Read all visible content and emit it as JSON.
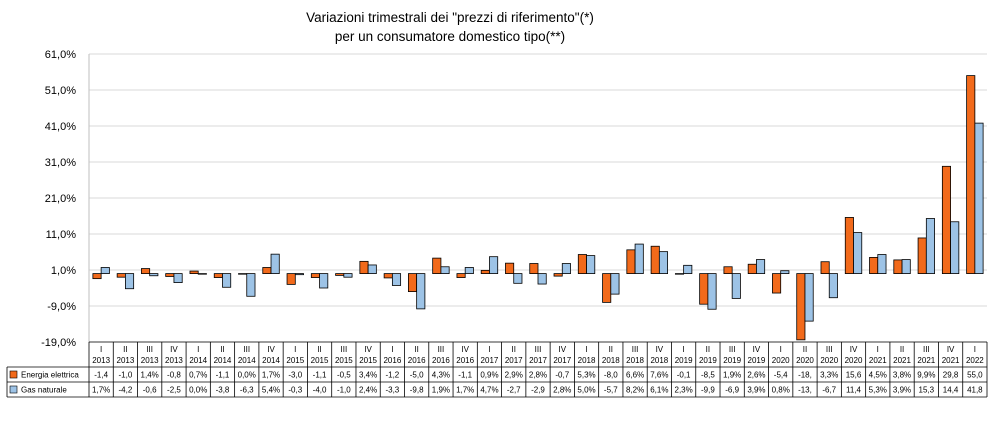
{
  "chart_data": {
    "type": "bar",
    "title": "Variazioni trimestrali dei \"prezzi di riferimento\"(*)",
    "subtitle": "per un consumatore domestico tipo(**)",
    "y_ticks": [
      "61,0%",
      "51,0%",
      "41,0%",
      "31,0%",
      "21,0%",
      "11,0%",
      "1,0%",
      "-9,0%",
      "-19,0%"
    ],
    "y_tick_values": [
      61,
      51,
      41,
      31,
      21,
      11,
      1,
      -9,
      -19
    ],
    "ylim": [
      -19,
      61
    ],
    "grid": true,
    "legend_position": "table-left",
    "quarters": [
      "I",
      "II",
      "III",
      "IV",
      "I",
      "II",
      "III",
      "IV",
      "I",
      "II",
      "III",
      "IV",
      "I",
      "II",
      "III",
      "IV",
      "I",
      "II",
      "III",
      "IV",
      "I",
      "II",
      "III",
      "IV",
      "I",
      "II",
      "III",
      "IV",
      "I",
      "II",
      "III",
      "IV",
      "I",
      "II",
      "III",
      "IV",
      "I"
    ],
    "years": [
      "2013",
      "2013",
      "2013",
      "2013",
      "2014",
      "2014",
      "2014",
      "2014",
      "2015",
      "2015",
      "2015",
      "2015",
      "2016",
      "2016",
      "2016",
      "2016",
      "2017",
      "2017",
      "2017",
      "2017",
      "2018",
      "2018",
      "2018",
      "2018",
      "2019",
      "2019",
      "2019",
      "2019",
      "2020",
      "2020",
      "2020",
      "2020",
      "2021",
      "2021",
      "2021",
      "2021",
      "2022"
    ],
    "series": [
      {
        "name": "Energia elettrica",
        "color": "#F26A1B",
        "values": [
          -1.4,
          -1.0,
          1.4,
          -0.8,
          0.7,
          -1.1,
          0.0,
          1.7,
          -3.0,
          -1.1,
          -0.5,
          3.4,
          -1.2,
          -5.0,
          4.3,
          -1.1,
          0.9,
          2.9,
          2.8,
          -0.7,
          5.3,
          -8.0,
          6.6,
          7.6,
          -0.1,
          -8.5,
          1.9,
          2.6,
          -5.4,
          -18.4,
          3.3,
          15.6,
          4.5,
          3.8,
          9.9,
          29.8,
          55.0
        ],
        "labels": [
          "-1,4",
          "-1,0",
          "1,4%",
          "-0,8",
          "0,7%",
          "-1,1",
          "0,0%",
          "1,7%",
          "-3,0",
          "-1,1",
          "-0,5",
          "3,4%",
          "-1,2",
          "-5,0",
          "4,3%",
          "-1,1",
          "0,9%",
          "2,9%",
          "2,8%",
          "-0,7",
          "5,3%",
          "-8,0",
          "6,6%",
          "7,6%",
          "-0,1",
          "-8,5",
          "1,9%",
          "2,6%",
          "-5,4",
          "-18,",
          "3,3%",
          "15,6",
          "4,5%",
          "3,8%",
          "9,9%",
          "29,8",
          "55,0"
        ]
      },
      {
        "name": "Gas naturale",
        "color": "#9DC3E6",
        "values": [
          1.7,
          -4.2,
          -0.6,
          -2.5,
          0.0,
          -3.8,
          -6.3,
          5.4,
          -0.3,
          -4.0,
          -1.0,
          2.4,
          -3.3,
          -9.8,
          1.9,
          1.7,
          4.7,
          -2.7,
          -2.9,
          2.8,
          5.0,
          -5.7,
          8.2,
          6.1,
          2.3,
          -9.9,
          -6.9,
          3.9,
          0.8,
          -13.2,
          -6.7,
          11.4,
          5.3,
          3.9,
          15.3,
          14.4,
          41.8
        ],
        "labels": [
          "1,7%",
          "-4,2",
          "-0,6",
          "-2,5",
          "0,0%",
          "-3,8",
          "-6,3",
          "5,4%",
          "-0,3",
          "-4,0",
          "-1,0",
          "2,4%",
          "-3,3",
          "-9,8",
          "1,9%",
          "1,7%",
          "4,7%",
          "-2,7",
          "-2,9",
          "2,8%",
          "5,0%",
          "-5,7",
          "8,2%",
          "6,1%",
          "2,3%",
          "-9,9",
          "-6,9",
          "3,9%",
          "0,8%",
          "-13,",
          "-6,7",
          "11,4",
          "5,3%",
          "3,9%",
          "15,3",
          "14,4",
          "41,8"
        ]
      }
    ]
  }
}
